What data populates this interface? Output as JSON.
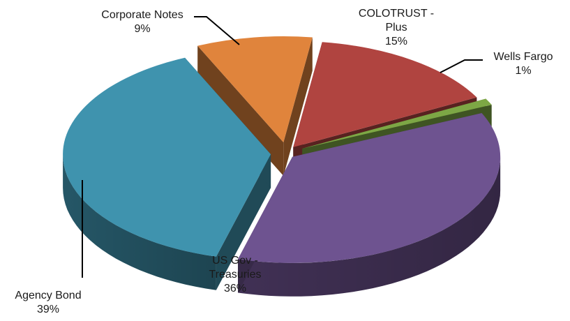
{
  "chart_data": {
    "type": "pie",
    "style": "3d-exploded",
    "title": "",
    "legend": "none",
    "slices": [
      {
        "name_lines": [
          "COLOTRUST -",
          "Plus"
        ],
        "percent_label": "15%",
        "value": 15,
        "color": "#B04440"
      },
      {
        "name_lines": [
          "Wells Fargo"
        ],
        "percent_label": "1%",
        "value": 1,
        "color": "#7DA745"
      },
      {
        "name_lines": [
          "US Gov -",
          "Treasuries"
        ],
        "percent_label": "36%",
        "value": 36,
        "color": "#6E5390"
      },
      {
        "name_lines": [
          "Agency Bond"
        ],
        "percent_label": "39%",
        "value": 39,
        "color": "#3F93AE"
      },
      {
        "name_lines": [
          "Corporate Notes"
        ],
        "percent_label": "9%",
        "value": 9,
        "color": "#E0843C"
      }
    ]
  }
}
